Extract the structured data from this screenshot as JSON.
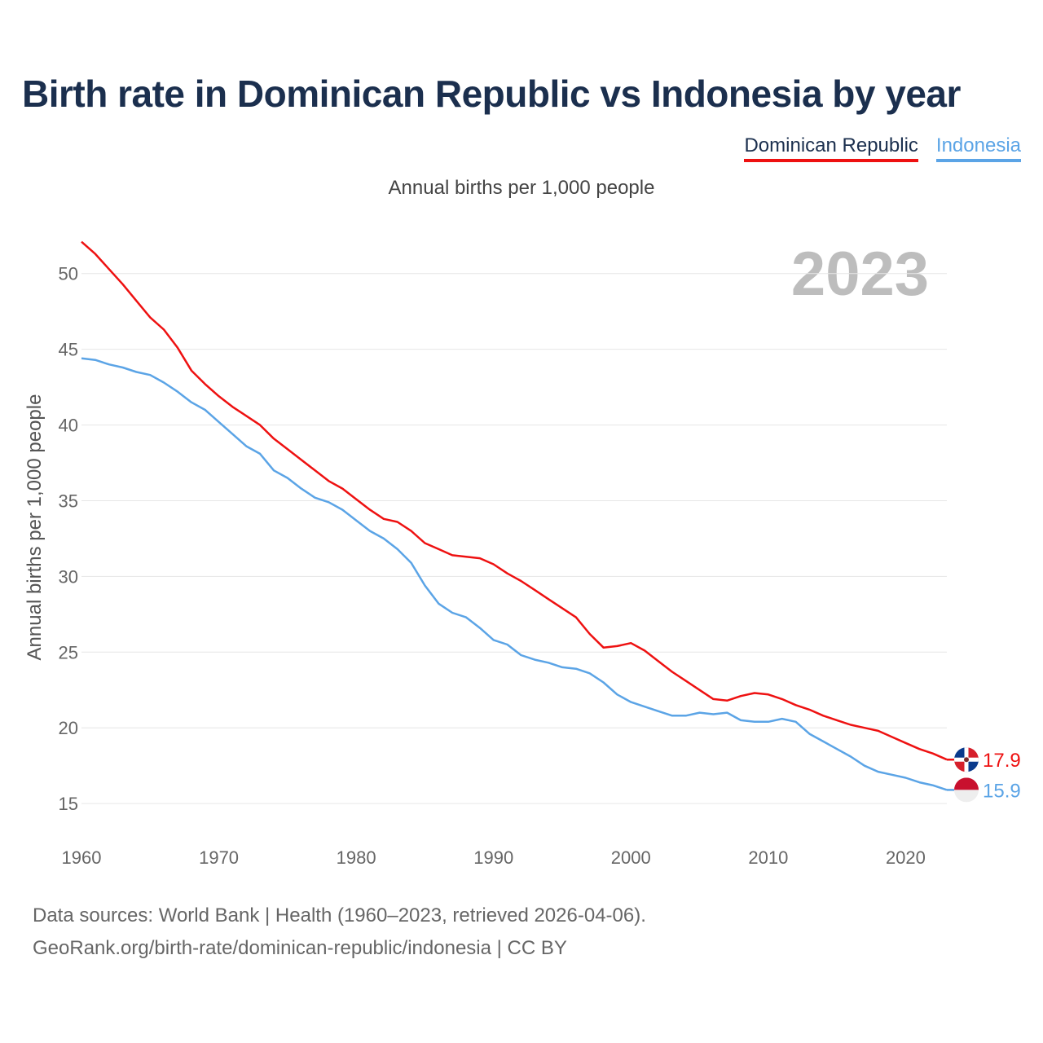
{
  "title": "Birth rate in Dominican Republic vs Indonesia by year",
  "subtitle": "Annual births per 1,000 people",
  "footer": {
    "line1": "Data sources: World Bank | Health (1960–2023, retrieved 2026-04-06).",
    "line2": "GeoRank.org/birth-rate/dominican-republic/indonesia | CC BY"
  },
  "colors": {
    "dominican": "#ee1111",
    "indonesia": "#5ba4e6",
    "grid": "#e6e6e6"
  },
  "chart_data": {
    "type": "line",
    "title": "Birth rate in Dominican Republic vs Indonesia by year",
    "ylabel": "Annual births per 1,000 people",
    "xlabel": "",
    "ylim": [
      13.5,
      53
    ],
    "xlim": [
      1960,
      2023
    ],
    "yticks": [
      15,
      20,
      25,
      30,
      35,
      40,
      45,
      50
    ],
    "xticks": [
      1960,
      1970,
      1980,
      1990,
      2000,
      2010,
      2020
    ],
    "current_year": "2023",
    "x": [
      1960,
      1961,
      1962,
      1963,
      1964,
      1965,
      1966,
      1967,
      1968,
      1969,
      1970,
      1971,
      1972,
      1973,
      1974,
      1975,
      1976,
      1977,
      1978,
      1979,
      1980,
      1981,
      1982,
      1983,
      1984,
      1985,
      1986,
      1987,
      1988,
      1989,
      1990,
      1991,
      1992,
      1993,
      1994,
      1995,
      1996,
      1997,
      1998,
      1999,
      2000,
      2001,
      2002,
      2003,
      2004,
      2005,
      2006,
      2007,
      2008,
      2009,
      2010,
      2011,
      2012,
      2013,
      2014,
      2015,
      2016,
      2017,
      2018,
      2019,
      2020,
      2021,
      2022,
      2023
    ],
    "series": [
      {
        "name": "Dominican Republic",
        "color": "#ee1111",
        "end_label": "17.9",
        "values": [
          52.1,
          51.3,
          50.3,
          49.3,
          48.2,
          47.1,
          46.3,
          45.1,
          43.6,
          42.7,
          41.9,
          41.2,
          40.6,
          40.0,
          39.1,
          38.4,
          37.7,
          37.0,
          36.3,
          35.8,
          35.1,
          34.4,
          33.8,
          33.6,
          33.0,
          32.2,
          31.8,
          31.4,
          31.3,
          31.2,
          30.8,
          30.2,
          29.7,
          29.1,
          28.5,
          27.9,
          27.3,
          26.2,
          25.3,
          25.4,
          25.6,
          25.1,
          24.4,
          23.7,
          23.1,
          22.5,
          21.9,
          21.8,
          22.1,
          22.3,
          22.2,
          21.9,
          21.5,
          21.2,
          20.8,
          20.5,
          20.2,
          20.0,
          19.8,
          19.4,
          19.0,
          18.6,
          18.3,
          17.9
        ]
      },
      {
        "name": "Indonesia",
        "color": "#5ba4e6",
        "end_label": "15.9",
        "values": [
          44.4,
          44.3,
          44.0,
          43.8,
          43.5,
          43.3,
          42.8,
          42.2,
          41.5,
          41.0,
          40.2,
          39.4,
          38.6,
          38.1,
          37.0,
          36.5,
          35.8,
          35.2,
          34.9,
          34.4,
          33.7,
          33.0,
          32.5,
          31.8,
          30.9,
          29.4,
          28.2,
          27.6,
          27.3,
          26.6,
          25.8,
          25.5,
          24.8,
          24.5,
          24.3,
          24.0,
          23.9,
          23.6,
          23.0,
          22.2,
          21.7,
          21.4,
          21.1,
          20.8,
          20.8,
          21.0,
          20.9,
          21.0,
          20.5,
          20.4,
          20.4,
          20.6,
          20.4,
          19.6,
          19.1,
          18.6,
          18.1,
          17.5,
          17.1,
          16.9,
          16.7,
          16.4,
          16.2,
          15.9
        ]
      }
    ]
  }
}
